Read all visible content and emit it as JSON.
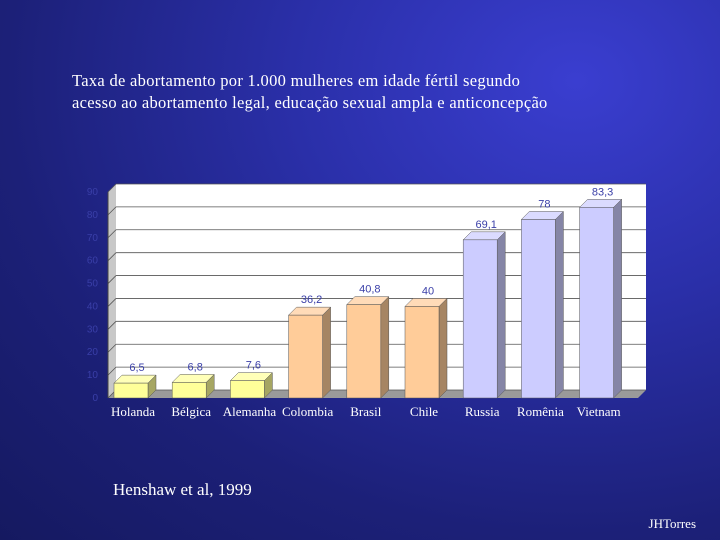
{
  "slide": {
    "title_line1": "Taxa de abortamento por 1.000 mulheres em idade fértil segundo",
    "title_line2": "acesso ao abortamento legal, educação sexual ampla e anticoncepção",
    "citation": "Henshaw et al, 1999",
    "author": "JHTorres"
  },
  "chart_data": {
    "type": "bar",
    "categories": [
      "Holanda",
      "Bélgica",
      "Alemanha",
      "Colombia",
      "Brasil",
      "Chile",
      "Russia",
      "Romênia",
      "Vietnam"
    ],
    "values": [
      6.5,
      6.8,
      7.6,
      36.2,
      40.8,
      40,
      69.1,
      78,
      83.3
    ],
    "data_labels": [
      "6,5",
      "6,8",
      "7,6",
      "36,2",
      "40,8",
      "40",
      "69,1",
      "78",
      "83,3"
    ],
    "ylim": [
      0,
      90
    ],
    "yticks": [
      0,
      10,
      20,
      30,
      40,
      50,
      60,
      70,
      80,
      90
    ],
    "grid": true,
    "colors": {
      "yellow": "#ffff99",
      "orange": "#ffcc99",
      "lavender": "#ccccff",
      "plot_wall": "#ffffff",
      "plot_wall_side": "#c8c8c8"
    },
    "bar_color_groups": [
      "yellow",
      "yellow",
      "yellow",
      "orange",
      "orange",
      "orange",
      "lavender",
      "lavender",
      "lavender"
    ]
  }
}
